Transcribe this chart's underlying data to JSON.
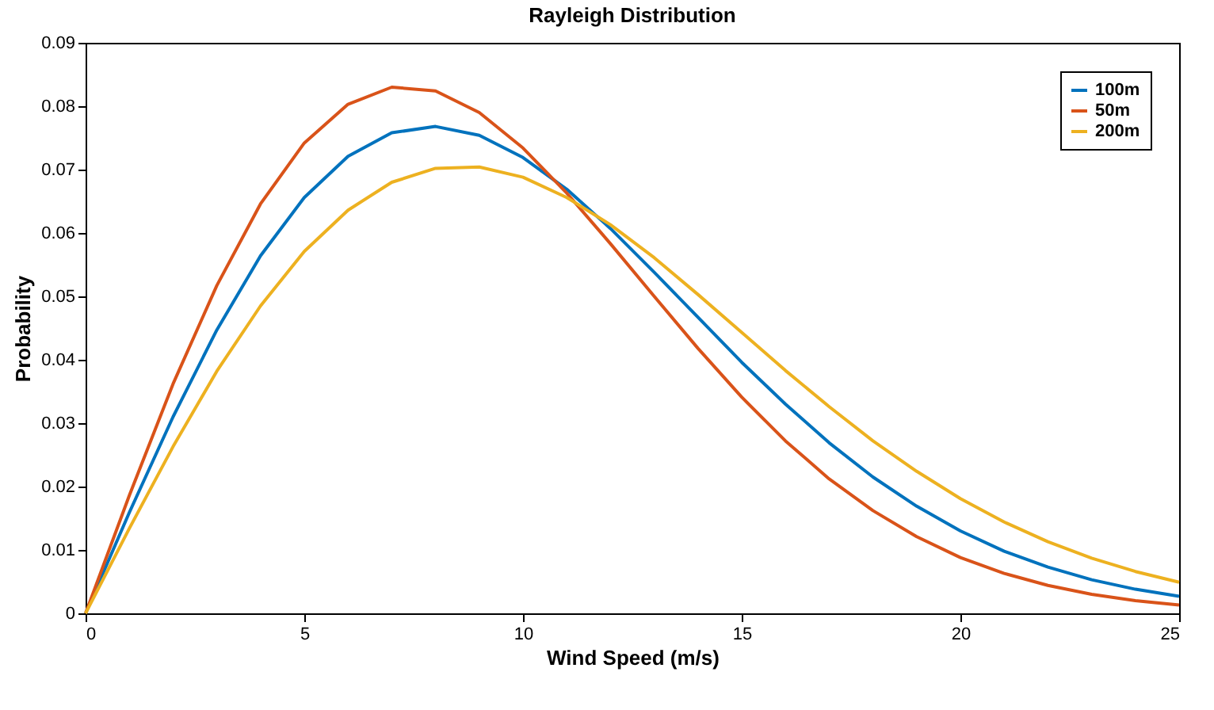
{
  "chart_data": {
    "type": "line",
    "title": "Rayleigh Distribution",
    "xlabel": "Wind Speed (m/s)",
    "ylabel": "Probability",
    "x": [
      0,
      1,
      2,
      3,
      4,
      5,
      6,
      7,
      8,
      9,
      10,
      11,
      12,
      13,
      14,
      15,
      16,
      17,
      18,
      19,
      20,
      21,
      22,
      23,
      24,
      25
    ],
    "series": [
      {
        "name": "100m",
        "color": "#0072bd",
        "values": [
          0,
          0.0159,
          0.031,
          0.0447,
          0.0564,
          0.0656,
          0.0721,
          0.0758,
          0.0768,
          0.0754,
          0.0719,
          0.0669,
          0.0607,
          0.0538,
          0.0467,
          0.0396,
          0.033,
          0.0269,
          0.0215,
          0.0169,
          0.013,
          0.0098,
          0.0073,
          0.0053,
          0.0038,
          0.0027
        ]
      },
      {
        "name": "50m",
        "color": "#d95319",
        "values": [
          0,
          0.0186,
          0.0362,
          0.0517,
          0.0646,
          0.0742,
          0.0803,
          0.083,
          0.0824,
          0.079,
          0.0734,
          0.0663,
          0.0583,
          0.05,
          0.0418,
          0.0341,
          0.0272,
          0.0212,
          0.0162,
          0.0121,
          0.0088,
          0.0063,
          0.0044,
          0.003,
          0.002,
          0.0013
        ]
      },
      {
        "name": "200m",
        "color": "#edb120",
        "values": [
          0,
          0.0134,
          0.0263,
          0.0382,
          0.0485,
          0.0571,
          0.0636,
          0.068,
          0.0702,
          0.0704,
          0.0688,
          0.0656,
          0.0613,
          0.0561,
          0.0503,
          0.0443,
          0.0383,
          0.0326,
          0.0272,
          0.0224,
          0.0181,
          0.0144,
          0.0113,
          0.0087,
          0.0066,
          0.0049
        ]
      }
    ],
    "xlim": [
      0,
      25
    ],
    "xticks": [
      0,
      5,
      10,
      15,
      20,
      25
    ],
    "ylim": [
      0,
      0.09
    ],
    "yticks": [
      0,
      0.01,
      0.02,
      0.03,
      0.04,
      0.05,
      0.06,
      0.07,
      0.08,
      0.09
    ],
    "legend": "top right",
    "grid": false,
    "line_style": "solid",
    "marker": "none"
  }
}
